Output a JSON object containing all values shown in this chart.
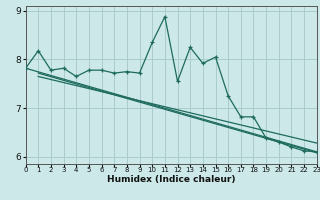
{
  "title": "",
  "xlabel": "Humidex (Indice chaleur)",
  "bg_color": "#cce8e8",
  "line_color": "#1e6b5e",
  "grid_color": "#aacccc",
  "xlim": [
    0,
    23
  ],
  "ylim": [
    5.85,
    9.1
  ],
  "yticks": [
    6,
    7,
    8,
    9
  ],
  "ytick_labels": [
    "6",
    "7",
    "8",
    "9"
  ],
  "xticks": [
    0,
    1,
    2,
    3,
    4,
    5,
    6,
    7,
    8,
    9,
    10,
    11,
    12,
    13,
    14,
    15,
    16,
    17,
    18,
    19,
    20,
    21,
    22,
    23
  ],
  "main_x": [
    0,
    1,
    2,
    3,
    4,
    5,
    6,
    7,
    8,
    9,
    10,
    11,
    12,
    13,
    14,
    15,
    16,
    17,
    18,
    19,
    20,
    21,
    22,
    23
  ],
  "main_y": [
    7.82,
    8.18,
    7.78,
    7.82,
    7.65,
    7.78,
    7.78,
    7.72,
    7.75,
    7.72,
    8.35,
    8.88,
    7.55,
    8.25,
    7.92,
    8.05,
    7.25,
    6.82,
    6.82,
    6.38,
    6.3,
    6.2,
    6.12,
    6.1
  ],
  "line1_x": [
    0,
    23
  ],
  "line1_y": [
    7.82,
    6.1
  ],
  "line2_x": [
    1,
    23
  ],
  "line2_y": [
    7.72,
    6.08
  ],
  "line3_x": [
    1,
    23
  ],
  "line3_y": [
    7.65,
    6.28
  ]
}
